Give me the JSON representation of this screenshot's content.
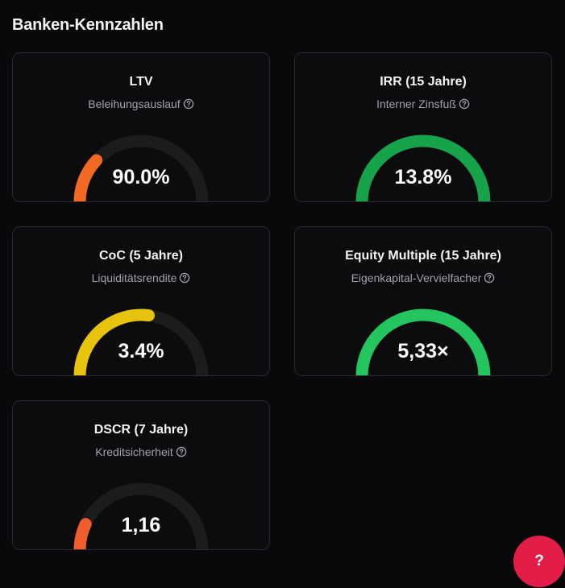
{
  "page": {
    "title": "Banken-Kennzahlen"
  },
  "colors": {
    "background": "#09090b",
    "card_background": "#0c0c0e",
    "card_border": "#2b2b2f",
    "track": "#1c1c1f",
    "help_icon": "#a1a1aa",
    "help_fab": "#e11d48"
  },
  "metrics": [
    {
      "title": "LTV",
      "subtitle": "Beleihungsauslauf",
      "value": "90.0%",
      "gauge_fill": 0.24,
      "color": "#f26a21",
      "icon": "help-circle-icon"
    },
    {
      "title": "IRR (15 Jahre)",
      "subtitle": "Interner Zinsfuß",
      "value": "13.8%",
      "gauge_fill": 1.0,
      "color": "#16a34a",
      "icon": "help-circle-icon"
    },
    {
      "title": "CoC (5 Jahre)",
      "subtitle": "Liquiditätsrendite",
      "value": "3.4%",
      "gauge_fill": 0.54,
      "color": "#e8c30c",
      "icon": "help-circle-icon"
    },
    {
      "title": "Equity Multiple (15 Jahre)",
      "subtitle": "Eigenkapital-Vervielfacher",
      "value": "5,33×",
      "gauge_fill": 1.0,
      "color": "#22c55e",
      "icon": "help-circle-icon"
    },
    {
      "title": "DSCR (7 Jahre)",
      "subtitle": "Kreditsicherheit",
      "value": "1,16",
      "gauge_fill": 0.14,
      "color": "#ef5d2a",
      "icon": "help-circle-icon"
    }
  ],
  "help_button": {
    "label": "?"
  }
}
